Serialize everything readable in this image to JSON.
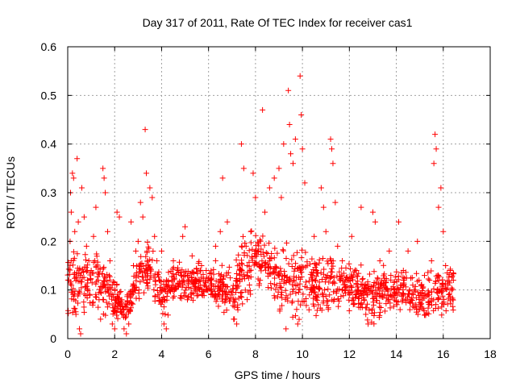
{
  "chart_data": {
    "type": "scatter",
    "title": "Day 317 of 2011, Rate Of TEC Index for receiver cas1",
    "xlabel": "GPS time / hours",
    "ylabel": "ROTI / TECUs",
    "xlim": [
      0,
      18
    ],
    "ylim": [
      0,
      0.6
    ],
    "xticks": [
      0,
      2,
      4,
      6,
      8,
      10,
      12,
      14,
      16,
      18
    ],
    "yticks": [
      0,
      0.1,
      0.2,
      0.3,
      0.4,
      0.5,
      0.6
    ],
    "xtick_labels": [
      "0",
      "2",
      "4",
      "6",
      "8",
      "10",
      "12",
      "14",
      "16",
      "18"
    ],
    "ytick_labels": [
      "0",
      "0.1",
      "0.2",
      "0.3",
      "0.4",
      "0.5",
      "0.6"
    ],
    "grid": true,
    "marker": "+",
    "color": "#ff0000",
    "series": [
      {
        "name": "cas1",
        "points": [
          [
            0.05,
            0.12
          ],
          [
            0.1,
            0.2
          ],
          [
            0.12,
            0.3
          ],
          [
            0.15,
            0.26
          ],
          [
            0.2,
            0.34
          ],
          [
            0.25,
            0.33
          ],
          [
            0.3,
            0.22
          ],
          [
            0.35,
            0.05
          ],
          [
            0.4,
            0.37
          ],
          [
            0.45,
            0.24
          ],
          [
            0.5,
            0.02
          ],
          [
            0.55,
            0.01
          ],
          [
            0.6,
            0.31
          ],
          [
            0.7,
            0.25
          ],
          [
            0.8,
            0.19
          ],
          [
            0.9,
            0.16
          ],
          [
            1.0,
            0.14
          ],
          [
            1.1,
            0.21
          ],
          [
            1.2,
            0.27
          ],
          [
            1.3,
            0.12
          ],
          [
            1.4,
            0.04
          ],
          [
            1.5,
            0.35
          ],
          [
            1.55,
            0.33
          ],
          [
            1.6,
            0.3
          ],
          [
            1.7,
            0.22
          ],
          [
            1.8,
            0.16
          ],
          [
            1.9,
            0.03
          ],
          [
            2.0,
            0.02
          ],
          [
            2.1,
            0.26
          ],
          [
            2.2,
            0.25
          ],
          [
            2.3,
            0.08
          ],
          [
            2.4,
            0.02
          ],
          [
            2.5,
            0.01
          ],
          [
            2.6,
            0.03
          ],
          [
            2.7,
            0.24
          ],
          [
            2.8,
            0.15
          ],
          [
            2.9,
            0.18
          ],
          [
            3.0,
            0.2
          ],
          [
            3.1,
            0.28
          ],
          [
            3.2,
            0.25
          ],
          [
            3.3,
            0.43
          ],
          [
            3.35,
            0.34
          ],
          [
            3.5,
            0.31
          ],
          [
            3.6,
            0.29
          ],
          [
            3.7,
            0.21
          ],
          [
            3.8,
            0.16
          ],
          [
            3.9,
            0.12
          ],
          [
            4.0,
            0.18
          ],
          [
            4.1,
            0.03
          ],
          [
            4.2,
            0.02
          ],
          [
            4.3,
            0.11
          ],
          [
            4.5,
            0.16
          ],
          [
            4.7,
            0.14
          ],
          [
            4.9,
            0.21
          ],
          [
            5.0,
            0.23
          ],
          [
            5.1,
            0.08
          ],
          [
            5.3,
            0.17
          ],
          [
            5.5,
            0.12
          ],
          [
            5.7,
            0.15
          ],
          [
            5.9,
            0.14
          ],
          [
            6.1,
            0.11
          ],
          [
            6.3,
            0.19
          ],
          [
            6.5,
            0.22
          ],
          [
            6.6,
            0.33
          ],
          [
            6.8,
            0.24
          ],
          [
            7.0,
            0.09
          ],
          [
            7.1,
            0.04
          ],
          [
            7.2,
            0.03
          ],
          [
            7.4,
            0.4
          ],
          [
            7.5,
            0.35
          ],
          [
            7.6,
            0.19
          ],
          [
            7.8,
            0.22
          ],
          [
            7.9,
            0.34
          ],
          [
            8.0,
            0.29
          ],
          [
            8.1,
            0.18
          ],
          [
            8.2,
            0.12
          ],
          [
            8.3,
            0.47
          ],
          [
            8.4,
            0.26
          ],
          [
            8.6,
            0.31
          ],
          [
            8.8,
            0.33
          ],
          [
            9.0,
            0.35
          ],
          [
            9.1,
            0.29
          ],
          [
            9.2,
            0.4
          ],
          [
            9.3,
            0.02
          ],
          [
            9.4,
            0.51
          ],
          [
            9.45,
            0.44
          ],
          [
            9.5,
            0.38
          ],
          [
            9.6,
            0.36
          ],
          [
            9.7,
            0.41
          ],
          [
            9.8,
            0.03
          ],
          [
            9.9,
            0.54
          ],
          [
            9.95,
            0.46
          ],
          [
            10.0,
            0.39
          ],
          [
            10.1,
            0.32
          ],
          [
            10.2,
            0.15
          ],
          [
            10.3,
            0.09
          ],
          [
            10.5,
            0.21
          ],
          [
            10.6,
            0.14
          ],
          [
            10.8,
            0.31
          ],
          [
            10.9,
            0.27
          ],
          [
            11.0,
            0.22
          ],
          [
            11.1,
            0.06
          ],
          [
            11.2,
            0.41
          ],
          [
            11.25,
            0.39
          ],
          [
            11.3,
            0.36
          ],
          [
            11.4,
            0.28
          ],
          [
            11.5,
            0.19
          ],
          [
            11.7,
            0.16
          ],
          [
            11.9,
            0.12
          ],
          [
            12.1,
            0.21
          ],
          [
            12.3,
            0.14
          ],
          [
            12.5,
            0.27
          ],
          [
            12.6,
            0.09
          ],
          [
            12.7,
            0.05
          ],
          [
            12.8,
            0.03
          ],
          [
            13.0,
            0.26
          ],
          [
            13.1,
            0.24
          ],
          [
            13.3,
            0.16
          ],
          [
            13.5,
            0.12
          ],
          [
            13.7,
            0.18
          ],
          [
            13.9,
            0.1
          ],
          [
            14.1,
            0.24
          ],
          [
            14.3,
            0.14
          ],
          [
            14.5,
            0.18
          ],
          [
            14.7,
            0.11
          ],
          [
            14.9,
            0.2
          ],
          [
            15.0,
            0.06
          ],
          [
            15.2,
            0.13
          ],
          [
            15.4,
            0.09
          ],
          [
            15.5,
            0.16
          ],
          [
            15.6,
            0.36
          ],
          [
            15.65,
            0.42
          ],
          [
            15.7,
            0.39
          ],
          [
            15.8,
            0.27
          ],
          [
            15.9,
            0.31
          ],
          [
            16.0,
            0.22
          ],
          [
            16.1,
            0.15
          ],
          [
            16.2,
            0.11
          ],
          [
            16.3,
            0.14
          ],
          [
            16.4,
            0.08
          ]
        ]
      }
    ],
    "density_fill": {
      "note": "dense cloud of markers following a slowly varying band",
      "band": [
        [
          0.0,
          0.02,
          0.22
        ],
        [
          0.5,
          0.01,
          0.2
        ],
        [
          1.0,
          0.04,
          0.21
        ],
        [
          1.5,
          0.02,
          0.19
        ],
        [
          2.0,
          0.01,
          0.14
        ],
        [
          2.5,
          0.01,
          0.1
        ],
        [
          3.0,
          0.06,
          0.19
        ],
        [
          3.5,
          0.08,
          0.22
        ],
        [
          4.0,
          0.02,
          0.16
        ],
        [
          4.5,
          0.05,
          0.17
        ],
        [
          5.0,
          0.06,
          0.18
        ],
        [
          5.5,
          0.07,
          0.17
        ],
        [
          6.0,
          0.06,
          0.16
        ],
        [
          6.5,
          0.05,
          0.17
        ],
        [
          7.0,
          0.02,
          0.16
        ],
        [
          7.5,
          0.05,
          0.24
        ],
        [
          8.0,
          0.07,
          0.26
        ],
        [
          8.5,
          0.06,
          0.24
        ],
        [
          9.0,
          0.04,
          0.22
        ],
        [
          9.5,
          0.01,
          0.21
        ],
        [
          10.0,
          0.02,
          0.22
        ],
        [
          10.5,
          0.03,
          0.19
        ],
        [
          11.0,
          0.04,
          0.21
        ],
        [
          11.5,
          0.04,
          0.18
        ],
        [
          12.0,
          0.04,
          0.19
        ],
        [
          12.5,
          0.02,
          0.16
        ],
        [
          13.0,
          0.01,
          0.17
        ],
        [
          13.5,
          0.04,
          0.16
        ],
        [
          14.0,
          0.04,
          0.16
        ],
        [
          14.5,
          0.04,
          0.15
        ],
        [
          15.0,
          0.02,
          0.14
        ],
        [
          15.5,
          0.03,
          0.17
        ],
        [
          16.0,
          0.03,
          0.18
        ],
        [
          16.45,
          0.03,
          0.16
        ]
      ],
      "count": 1400,
      "seed": 317
    }
  }
}
